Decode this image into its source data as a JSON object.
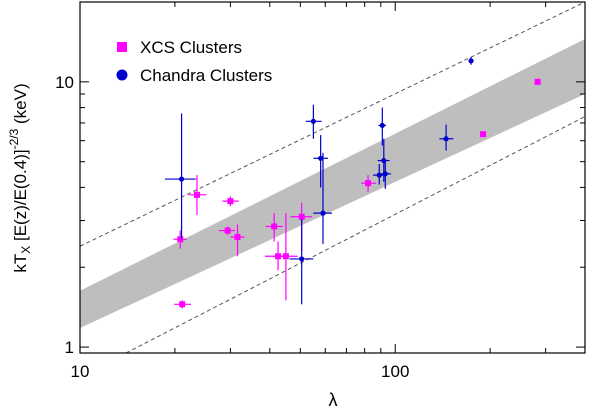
{
  "chart_data": {
    "type": "scatter",
    "title": "",
    "xlabel": "λ",
    "ylabel_main": "kT",
    "ylabel_sub": "X",
    "ylabel_rest": " [E(z)/E(0.4)]",
    "ylabel_sup": "-2/3",
    "ylabel_unit": " (keV)",
    "xscale": "log",
    "yscale": "log",
    "xlim": [
      10,
      400
    ],
    "ylim": [
      0.95,
      20
    ],
    "x_ticks": [
      {
        "value": 10,
        "label": "10"
      },
      {
        "value": 100,
        "label": "100"
      }
    ],
    "y_ticks": [
      {
        "value": 1,
        "label": "1"
      },
      {
        "value": 10,
        "label": "10"
      }
    ],
    "legend_position": "top-left",
    "colors": {
      "xcs": "#ff00ff",
      "chandra": "#0000cc",
      "band": "#bebebe",
      "dashed": "#555555"
    },
    "series": [
      {
        "name": "XCS Clusters",
        "marker": "square",
        "points": [
          {
            "x": 20.8,
            "y": 2.55,
            "xlo": 19.8,
            "xhi": 21.8,
            "ylo": 2.35,
            "yhi": 2.75
          },
          {
            "x": 21.1,
            "y": 1.45,
            "xlo": 19.9,
            "xhi": 22.5,
            "ylo": 1.4,
            "yhi": 1.5
          },
          {
            "x": 23.5,
            "y": 3.75,
            "xlo": 22.1,
            "xhi": 25.2,
            "ylo": 3.15,
            "yhi": 4.45
          },
          {
            "x": 29.4,
            "y": 2.75,
            "xlo": 27.6,
            "xhi": 31.0,
            "ylo": 2.65,
            "yhi": 2.85
          },
          {
            "x": 30.0,
            "y": 3.55,
            "xlo": 28.3,
            "xhi": 31.9,
            "ylo": 3.4,
            "yhi": 3.7
          },
          {
            "x": 31.6,
            "y": 2.6,
            "xlo": 30.0,
            "xhi": 33.3,
            "ylo": 2.2,
            "yhi": 2.9
          },
          {
            "x": 41.3,
            "y": 2.85,
            "xlo": 38.8,
            "xhi": 44.0,
            "ylo": 2.5,
            "yhi": 3.2
          },
          {
            "x": 42.5,
            "y": 2.2,
            "xlo": 38.6,
            "xhi": 45.0,
            "ylo": 1.95,
            "yhi": 2.5
          },
          {
            "x": 45.0,
            "y": 2.2,
            "xlo": 41.0,
            "xhi": 49.0,
            "ylo": 1.5,
            "yhi": 3.2
          },
          {
            "x": 50.5,
            "y": 3.1,
            "xlo": 46.5,
            "xhi": 54.5,
            "ylo": 2.3,
            "yhi": 3.5
          },
          {
            "x": 82.0,
            "y": 4.15,
            "xlo": 78.0,
            "xhi": 87.0,
            "ylo": 3.85,
            "yhi": 4.45
          },
          {
            "x": 190.0,
            "y": 6.35,
            "xlo": 190.0,
            "xhi": 190.0,
            "ylo": 6.35,
            "yhi": 6.35
          },
          {
            "x": 283.0,
            "y": 10.0,
            "xlo": 283.0,
            "xhi": 283.0,
            "ylo": 10.0,
            "yhi": 10.0
          }
        ]
      },
      {
        "name": "Chandra Clusters",
        "marker": "circle",
        "points": [
          {
            "x": 21.0,
            "y": 4.3,
            "xlo": 18.6,
            "xhi": 23.3,
            "ylo": 2.55,
            "yhi": 7.6
          },
          {
            "x": 50.5,
            "y": 2.15,
            "xlo": 46.2,
            "xhi": 55.0,
            "ylo": 1.45,
            "yhi": 3.05
          },
          {
            "x": 55.0,
            "y": 7.1,
            "xlo": 52.0,
            "xhi": 58.4,
            "ylo": 6.1,
            "yhi": 8.2
          },
          {
            "x": 58.0,
            "y": 5.15,
            "xlo": 55.0,
            "xhi": 61.2,
            "ylo": 4.0,
            "yhi": 6.3
          },
          {
            "x": 59.0,
            "y": 3.2,
            "xlo": 55.0,
            "xhi": 63.0,
            "ylo": 2.45,
            "yhi": 5.4
          },
          {
            "x": 89.0,
            "y": 4.45,
            "xlo": 85.0,
            "xhi": 93.0,
            "ylo": 4.1,
            "yhi": 4.9
          },
          {
            "x": 91.0,
            "y": 6.85,
            "xlo": 88.5,
            "xhi": 93.5,
            "ylo": 5.75,
            "yhi": 8.0
          },
          {
            "x": 92.0,
            "y": 5.05,
            "xlo": 88.0,
            "xhi": 96.0,
            "ylo": 4.2,
            "yhi": 6.1
          },
          {
            "x": 93.0,
            "y": 4.5,
            "xlo": 89.0,
            "xhi": 97.0,
            "ylo": 3.95,
            "yhi": 5.0
          },
          {
            "x": 145.0,
            "y": 6.1,
            "xlo": 138.0,
            "xhi": 153.0,
            "ylo": 5.5,
            "yhi": 6.9
          },
          {
            "x": 174.0,
            "y": 12.0,
            "xlo": 171.0,
            "xhi": 177.0,
            "ylo": 11.6,
            "yhi": 12.4
          }
        ]
      }
    ],
    "band": {
      "center_at_x10": 1.35,
      "center_at_x400": 11.1,
      "lower_at_x10": 1.18,
      "upper_at_x10": 1.63,
      "lower_at_x400": 9.0,
      "upper_at_x400": 14.5
    },
    "dashed_lines": {
      "upper_at_x10": 2.4,
      "upper_at_x400": 20,
      "lower_at_x14": 0.95,
      "lower_at_x400": 7.4
    }
  }
}
